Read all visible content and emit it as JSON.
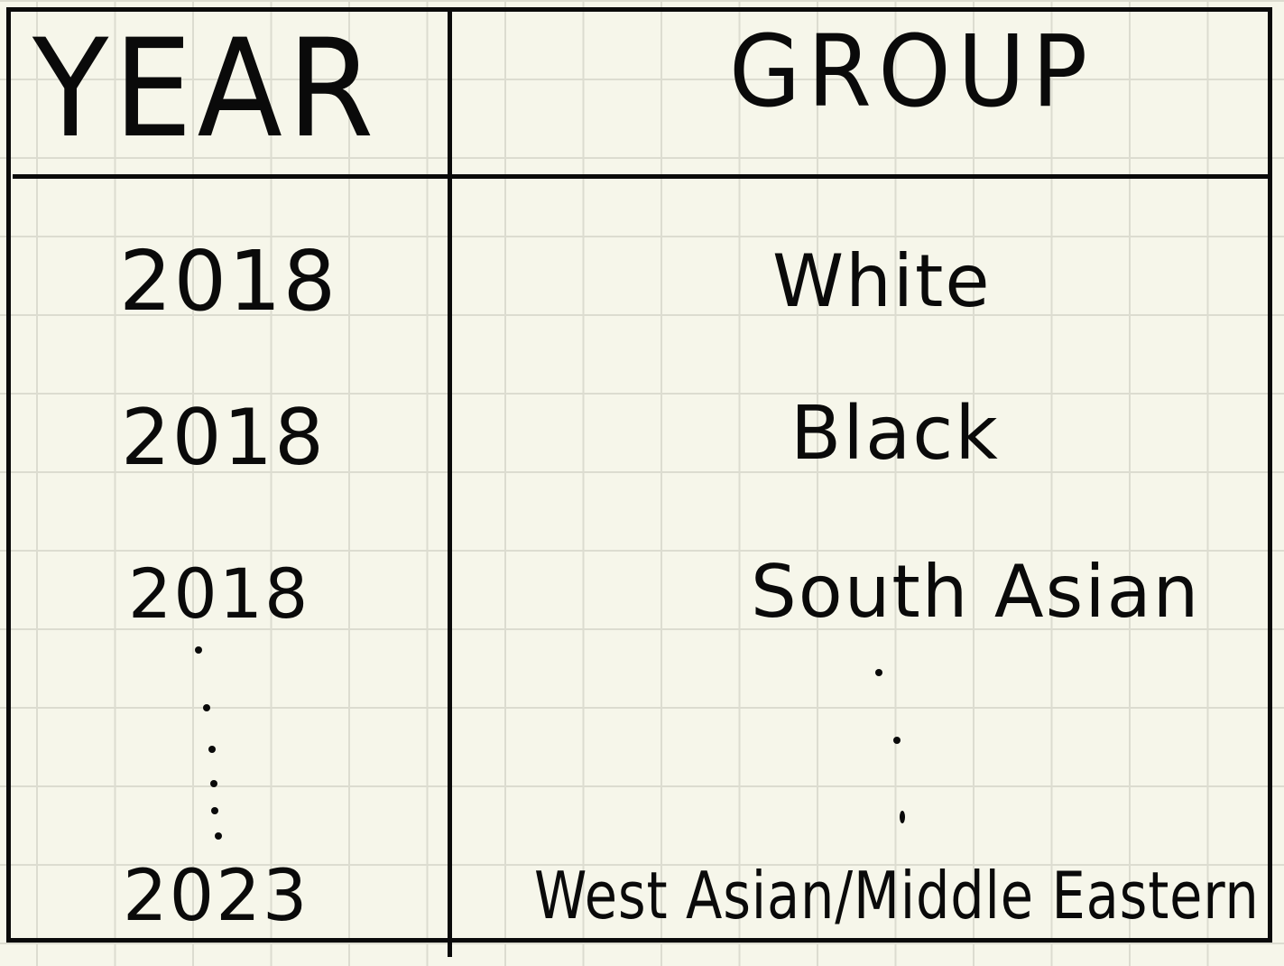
{
  "table": {
    "headers": {
      "year": "YEAR",
      "group": "GROUP"
    },
    "rows": [
      {
        "year": "2018",
        "group": "White"
      },
      {
        "year": "2018",
        "group": "Black"
      },
      {
        "year": "2018",
        "group": "South Asian"
      },
      {
        "year": "2023",
        "group": "West Asian/Middle Eastern"
      }
    ]
  }
}
